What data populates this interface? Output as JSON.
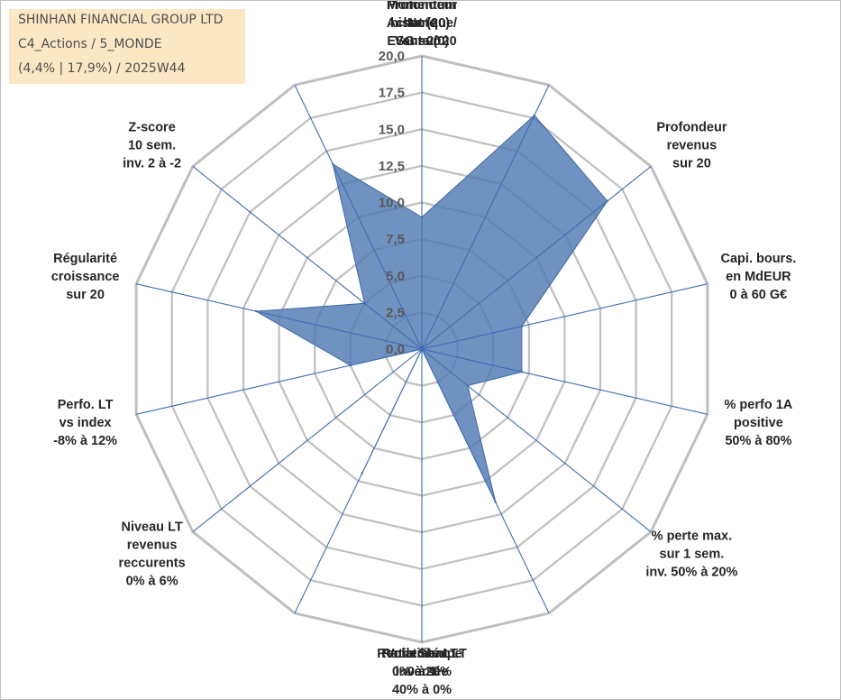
{
  "header": {
    "company": "SHINHAN FINANCIAL GROUP LTD",
    "portfolio": "C4_Actions / 5_MONDE",
    "info": "(4,4% | 17,9%) / 2025W44"
  },
  "chart_data": {
    "type": "radar",
    "rlim": [
      0,
      20
    ],
    "rticks": [
      "0,0",
      "2,5",
      "5,0",
      "7,5",
      "10,0",
      "12,5",
      "15,0",
      "17,5",
      "20,0"
    ],
    "grid": true,
    "axes": [
      {
        "label": [
          "Note",
          "ESG sur 20"
        ]
      },
      {
        "label": [
          "Profondeur",
          "historique",
          "sur 20"
        ]
      },
      {
        "label": [
          "Profondeur",
          "revenus",
          "sur 20"
        ]
      },
      {
        "label": [
          "Capi. bours.",
          "en MdEUR",
          "0 à 60 G€"
        ]
      },
      {
        "label": [
          "% perfo 1A",
          "positive",
          "50% à 80%"
        ]
      },
      {
        "label": [
          "% perte max.",
          "sur 1 sem.",
          "inv. 50% à 20%"
        ]
      },
      {
        "label": [
          "Volatilité LT",
          "inversée",
          "40% à 0%"
        ]
      },
      {
        "label": [
          "Ratio Sharpe",
          "0 à 1"
        ]
      },
      {
        "label": [
          "Rendement LT",
          "0% à 20%"
        ]
      },
      {
        "label": [
          "Niveau LT",
          "revenus",
          "reccurents",
          "0% à 6%"
        ]
      },
      {
        "label": [
          "Perfo. LT",
          "vs index",
          "-8% à 12%"
        ]
      },
      {
        "label": [
          "Régularité",
          "croissance",
          "sur 20"
        ]
      },
      {
        "label": [
          "Z-score",
          "10 sem.",
          "inv. 2 à -2"
        ]
      },
      {
        "label": [
          "Momentum",
          "Achat (20) /",
          "Vente (0)"
        ]
      }
    ],
    "series": [
      {
        "values": [
          9.0,
          17.7,
          16.2,
          7.0,
          7.0,
          4.0,
          11.6,
          0.0,
          9.4,
          0.0,
          5.0,
          11.6,
          5.0,
          14.0
        ]
      }
    ],
    "colors": {
      "fill": "#4f7ab3",
      "stroke": "#3e679f",
      "grid": "#bfbfbf",
      "spoke": "#3e6cb3"
    }
  }
}
